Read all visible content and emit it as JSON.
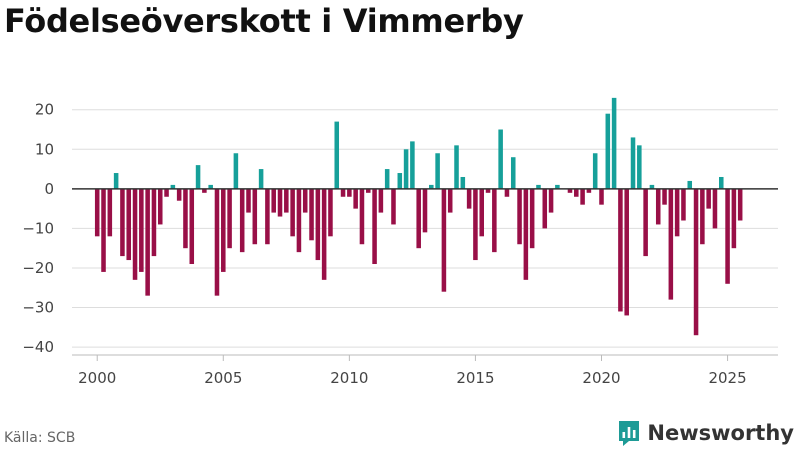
{
  "title": "Födelseöverskott i Vimmerby",
  "source": "Källa: SCB",
  "brand": {
    "name": "Newsworthy",
    "icon": "newsworthy-logo-icon"
  },
  "colors": {
    "positive": "#16a09a",
    "negative": "#990f47",
    "zero_line": "#333333",
    "grid": "#dddddd",
    "brand": "#1e9b96"
  },
  "chart_data": {
    "type": "bar",
    "title": "Födelseöverskott i Vimmerby",
    "xlabel": "",
    "ylabel": "",
    "x_start": 2000.0,
    "x_step": 0.25,
    "xlim": [
      1999,
      2027
    ],
    "ylim": [
      -42,
      26
    ],
    "yticks": [
      20,
      10,
      0,
      -10,
      -20,
      -30,
      -40
    ],
    "ytick_labels": [
      "20",
      "10",
      "0",
      "−10",
      "−20",
      "−30",
      "−40"
    ],
    "xticks": [
      2000,
      2005,
      2010,
      2015,
      2020,
      2025
    ],
    "xtick_labels": [
      "2000",
      "2005",
      "2010",
      "2015",
      "2020",
      "2025"
    ],
    "grid": true,
    "values": [
      -12,
      -21,
      -12,
      4,
      -17,
      -18,
      -23,
      -21,
      -27,
      -17,
      -9,
      -2,
      1,
      -3,
      -15,
      -19,
      6,
      -1,
      1,
      -27,
      -21,
      -15,
      9,
      -16,
      -6,
      -14,
      5,
      -14,
      -6,
      -7,
      -6,
      -12,
      -16,
      -6,
      -13,
      -18,
      -23,
      -12,
      17,
      -2,
      -2,
      -5,
      -14,
      -1,
      -19,
      -6,
      5,
      -9,
      4,
      10,
      12,
      -15,
      -11,
      1,
      9,
      -26,
      -6,
      11,
      3,
      -5,
      -18,
      -12,
      -1,
      -16,
      15,
      -2,
      8,
      -14,
      -23,
      -15,
      1,
      -10,
      -6,
      1,
      0,
      -1,
      -2,
      -4,
      -1,
      9,
      -4,
      19,
      23,
      -31,
      -32,
      13,
      11,
      -17,
      1,
      -9,
      -4,
      -28,
      -12,
      -8,
      2,
      -37,
      -14,
      -5,
      -10,
      3,
      -24,
      -15,
      -8
    ]
  }
}
